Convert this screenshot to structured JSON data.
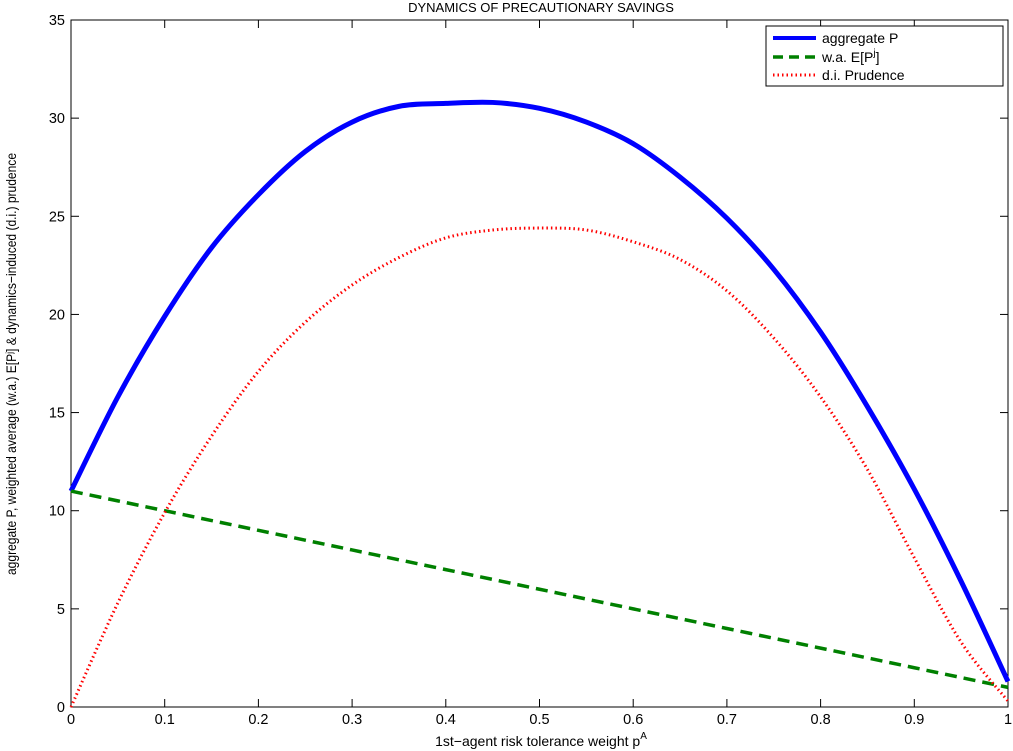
{
  "chart_data": {
    "type": "line",
    "title": "DYNAMICS OF PRECAUTIONARY SAVINGS",
    "xlabel": "1st−agent risk tolerance weight p",
    "xlabel_sup": "A",
    "ylabel": "aggregate P, weighted average (w.a.) E[Pʲ] & dynamics−induced (d.i.) prudence",
    "xlim": [
      0,
      1
    ],
    "ylim": [
      0,
      35
    ],
    "xticks": [
      "0",
      "0.1",
      "0.2",
      "0.3",
      "0.4",
      "0.5",
      "0.6",
      "0.7",
      "0.8",
      "0.9",
      "1"
    ],
    "yticks": [
      "0",
      "5",
      "10",
      "15",
      "20",
      "25",
      "30",
      "35"
    ],
    "grid": false,
    "legend_position": "top-right",
    "x": [
      0,
      0.05,
      0.1,
      0.15,
      0.2,
      0.25,
      0.3,
      0.35,
      0.4,
      0.45,
      0.5,
      0.55,
      0.6,
      0.65,
      0.7,
      0.75,
      0.8,
      0.85,
      0.9,
      0.95,
      1.0
    ],
    "series": [
      {
        "name": "aggregate P",
        "style": "solid",
        "color": "#0000ff",
        "values": [
          11.0,
          15.8,
          19.9,
          23.4,
          26.1,
          28.3,
          29.8,
          30.6,
          30.75,
          30.8,
          30.5,
          29.8,
          28.7,
          27.0,
          24.9,
          22.3,
          19.1,
          15.3,
          11.1,
          6.4,
          1.3
        ]
      },
      {
        "name": "w.a. E[P",
        "name_sup": "j",
        "name_suffix": "]",
        "style": "dashed",
        "color": "#008000",
        "values": [
          11.0,
          10.5,
          10.0,
          9.5,
          9.0,
          8.5,
          8.0,
          7.5,
          7.0,
          6.5,
          6.0,
          5.5,
          5.0,
          4.5,
          4.0,
          3.5,
          3.0,
          2.5,
          2.0,
          1.5,
          1.0
        ]
      },
      {
        "name": "d.i. Prudence",
        "style": "dotted",
        "color": "#ff0000",
        "values": [
          0.0,
          5.3,
          9.9,
          13.8,
          17.1,
          19.6,
          21.5,
          22.9,
          23.9,
          24.3,
          24.4,
          24.3,
          23.7,
          22.8,
          21.2,
          18.8,
          15.8,
          12.1,
          7.6,
          3.3,
          0.3
        ]
      }
    ]
  }
}
